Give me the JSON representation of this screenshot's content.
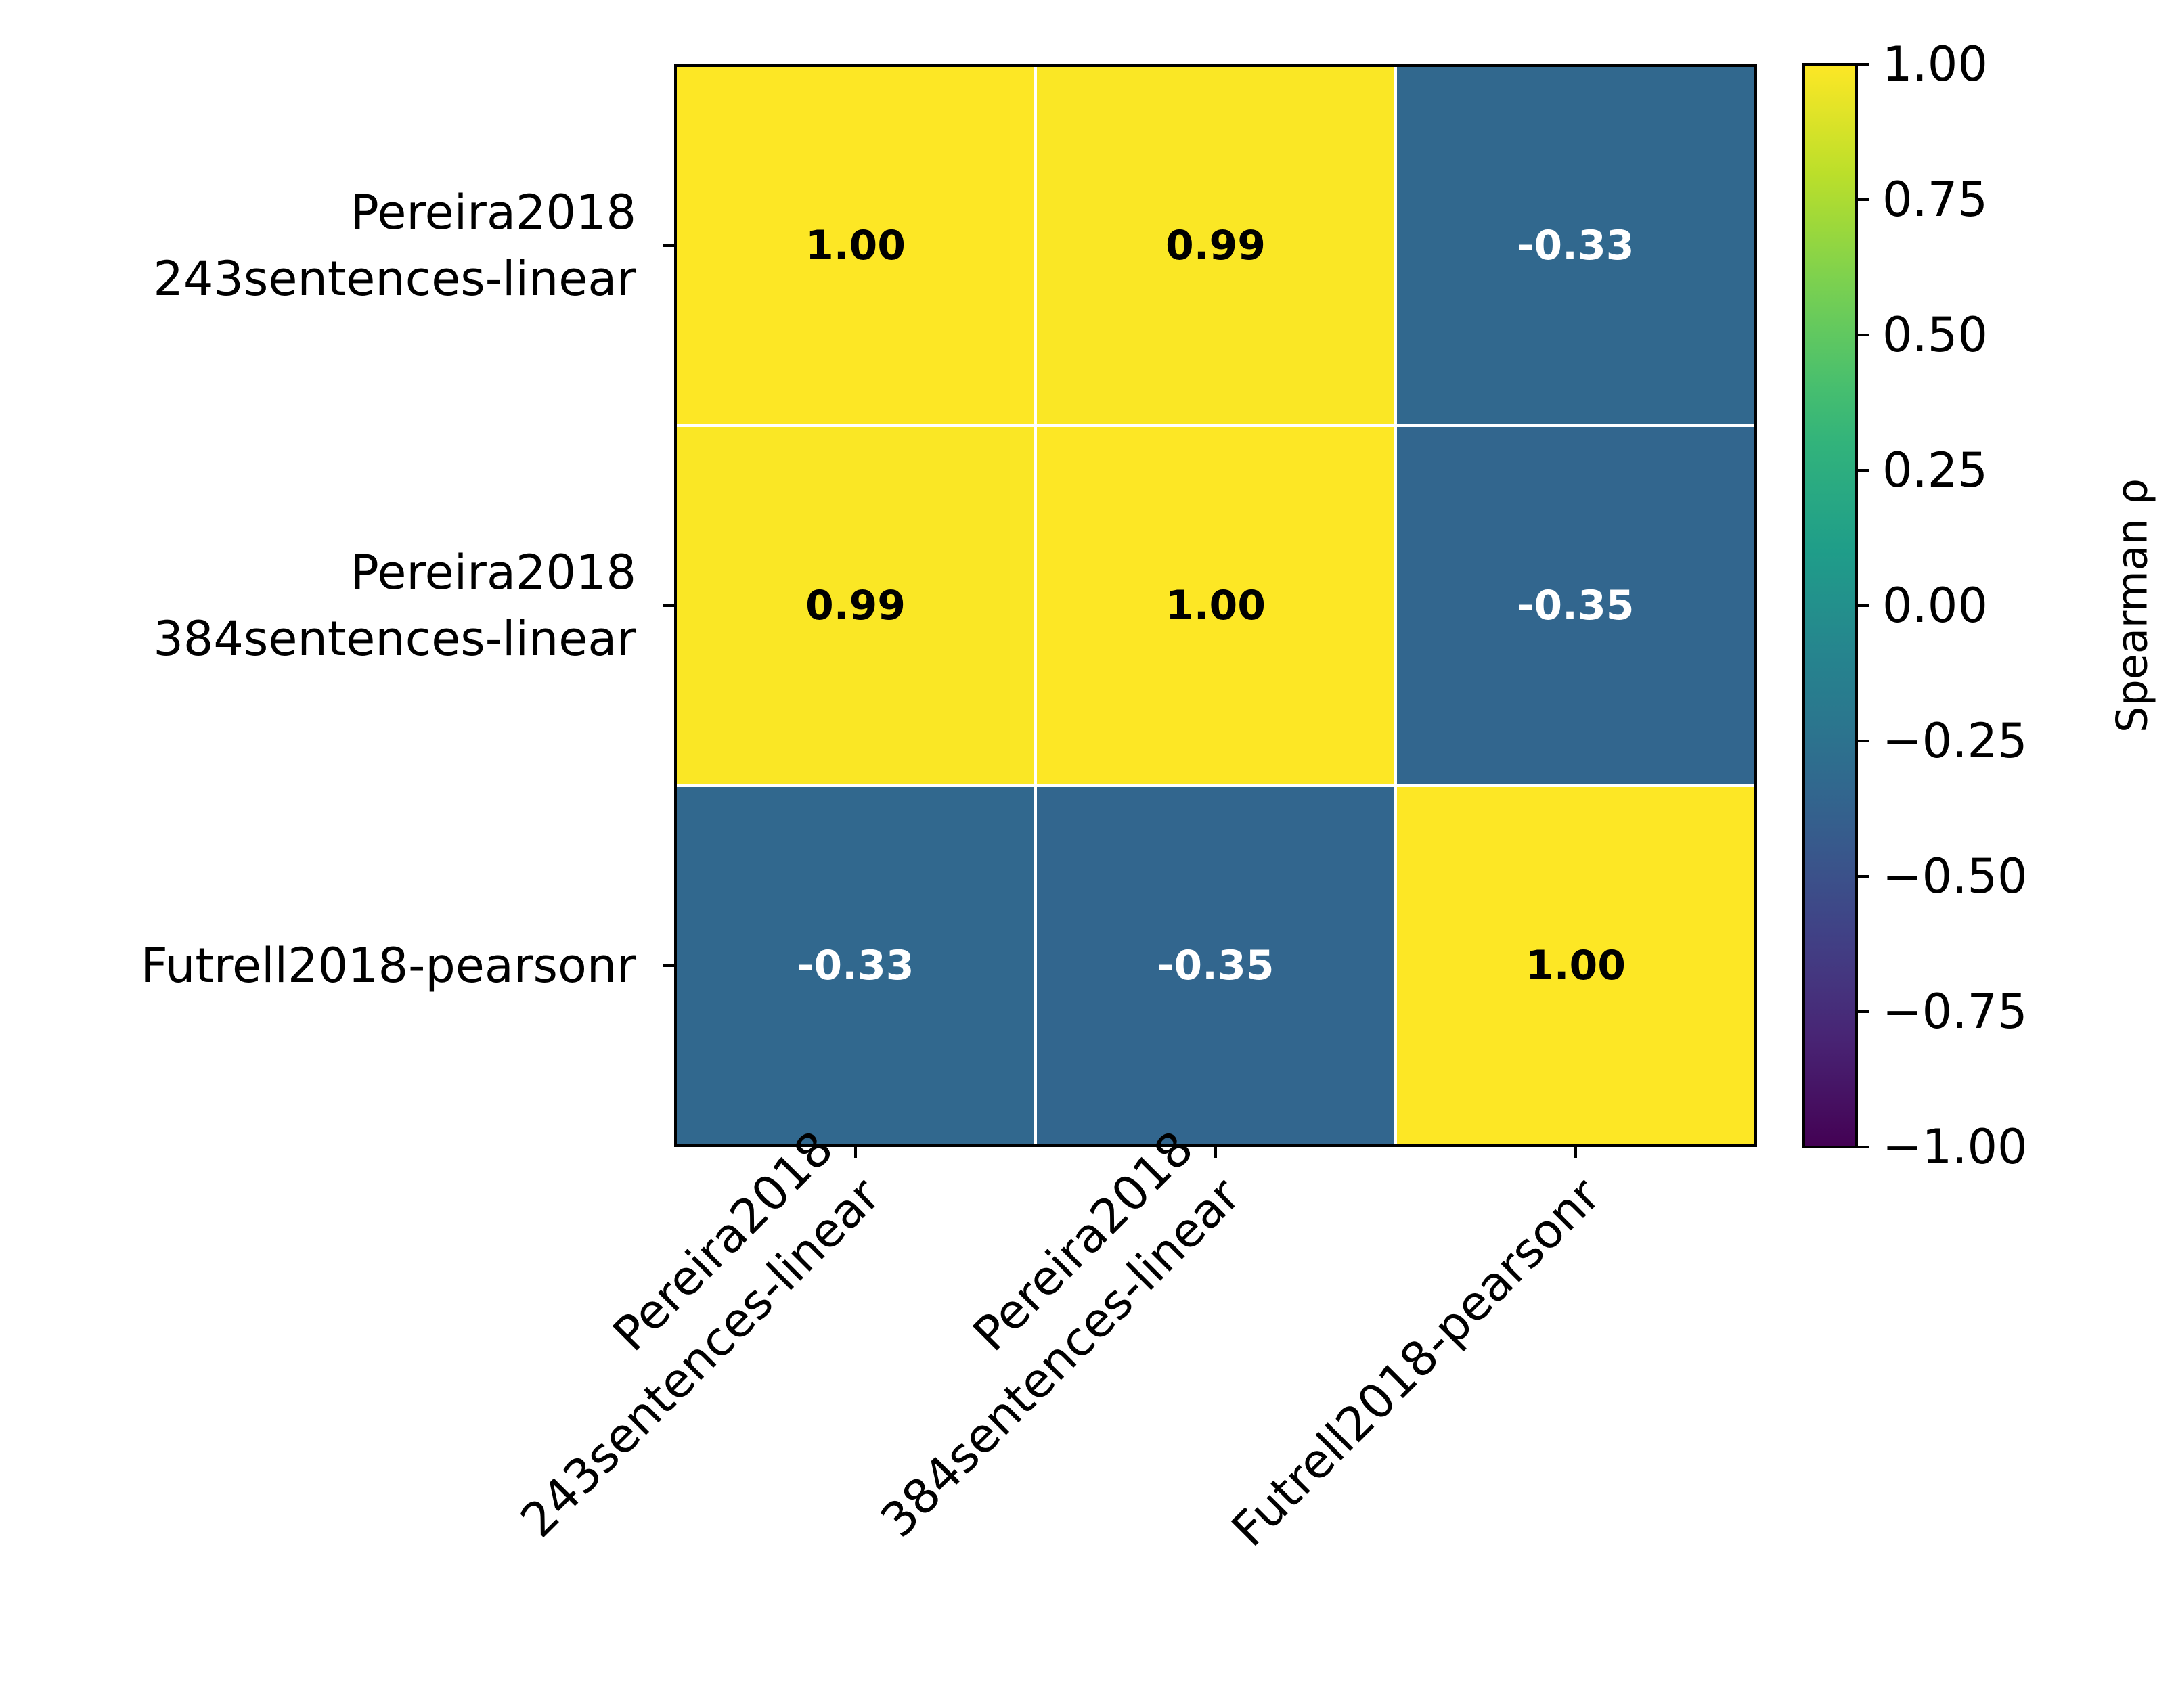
{
  "chart_data": {
    "type": "heatmap",
    "title": "",
    "row_labels": [
      [
        "Pereira2018",
        "243sentences-linear"
      ],
      [
        "Pereira2018",
        "384sentences-linear"
      ],
      [
        "Futrell2018-pearsonr"
      ]
    ],
    "col_labels": [
      [
        "Pereira2018",
        "243sentences-linear"
      ],
      [
        "Pereira2018",
        "384sentences-linear"
      ],
      [
        "Futrell2018-pearsonr"
      ]
    ],
    "values": [
      [
        1.0,
        0.99,
        -0.33
      ],
      [
        0.99,
        1.0,
        -0.35
      ],
      [
        -0.33,
        -0.35,
        1.0
      ]
    ],
    "value_labels": [
      [
        "1.00",
        "0.99",
        "-0.33"
      ],
      [
        "0.99",
        "1.00",
        "-0.35"
      ],
      [
        "-0.33",
        "-0.35",
        "1.00"
      ]
    ],
    "colormap": "viridis",
    "vmin": -1.0,
    "vmax": 1.0,
    "colorbar": {
      "label": "Spearman ρ",
      "ticks": [
        1.0,
        0.75,
        0.5,
        0.25,
        0.0,
        -0.25,
        -0.5,
        -0.75,
        -1.0
      ],
      "tick_labels": [
        "1.00",
        "0.75",
        "0.50",
        "0.25",
        "0.00",
        "−0.25",
        "−0.50",
        "−0.75",
        "−1.00"
      ]
    },
    "text_colors": {
      "light_cell": "#000000",
      "dark_cell": "#ffffff"
    },
    "grid_color": "#ffffff"
  }
}
